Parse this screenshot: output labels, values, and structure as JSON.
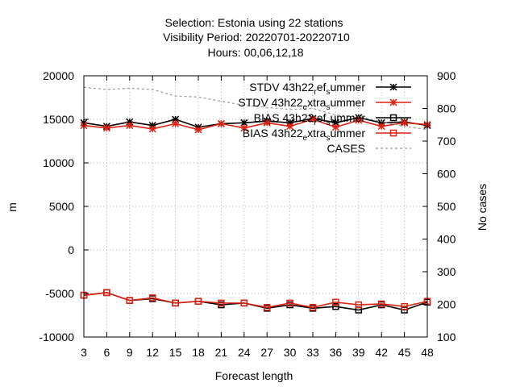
{
  "title_lines": [
    "Selection: Estonia using     22 stations",
    "Visibility   Period: 20220701-20220710",
    "Hours:  00,06,12,18"
  ],
  "chart_data": {
    "type": "line",
    "xlabel": "Forecast length",
    "ylabel": "m",
    "y2label": "No cases",
    "x": [
      3,
      6,
      9,
      12,
      15,
      18,
      21,
      24,
      27,
      30,
      33,
      36,
      39,
      42,
      45,
      48
    ],
    "xlim": [
      3,
      48
    ],
    "ylim": [
      -10000,
      20000
    ],
    "y2lim": [
      100,
      900
    ],
    "yticks": [
      "-10000",
      "-5000",
      "0",
      "5000",
      "10000",
      "15000",
      "20000"
    ],
    "y2ticks": [
      "100",
      "200",
      "300",
      "400",
      "500",
      "600",
      "700",
      "800",
      "900"
    ],
    "grid": true,
    "legend_position": "top-right",
    "series": [
      {
        "name": "STDV 43h22_ref_summer",
        "legend_parts": [
          "STDV 43h22",
          "r",
          "ef",
          "s",
          "ummer"
        ],
        "axis": "y",
        "color": "#000000",
        "marker": "star",
        "values": [
          14600,
          14200,
          14700,
          14300,
          15000,
          14100,
          14500,
          14600,
          14800,
          14600,
          15100,
          14600,
          15200,
          14600,
          14700,
          14300
        ]
      },
      {
        "name": "STDV 43h22_extra_summer",
        "legend_parts": [
          "STDV 43h22",
          "e",
          "xtra",
          "s",
          "ummer"
        ],
        "axis": "y",
        "color": "#dd2211",
        "marker": "star",
        "values": [
          14300,
          14000,
          14300,
          13900,
          14500,
          13800,
          14500,
          14000,
          14600,
          14200,
          15000,
          14100,
          14900,
          14200,
          14600,
          14400
        ]
      },
      {
        "name": "BIAS 43h22_ref_summer",
        "legend_parts": [
          "BIAS 43h22",
          "r",
          "ef",
          "s",
          "ummer"
        ],
        "axis": "y",
        "color": "#000000",
        "marker": "square",
        "values": [
          -5200,
          -4900,
          -5800,
          -5600,
          -6100,
          -5900,
          -6300,
          -6100,
          -6700,
          -6300,
          -6700,
          -6500,
          -6900,
          -6300,
          -6900,
          -6000
        ]
      },
      {
        "name": "BIAS 43h22_extra_summer",
        "legend_parts": [
          "BIAS 43h22",
          "e",
          "xtra",
          "s",
          "ummer"
        ],
        "axis": "y",
        "color": "#dd2211",
        "marker": "square",
        "values": [
          -5200,
          -4900,
          -5800,
          -5500,
          -6100,
          -5900,
          -6100,
          -6100,
          -6600,
          -6100,
          -6600,
          -6000,
          -6300,
          -6200,
          -6500,
          -5900
        ]
      },
      {
        "name": "CASES",
        "legend_parts": [
          "CASES",
          "",
          "",
          "",
          ""
        ],
        "axis": "y2",
        "color": "#999999",
        "marker": "none",
        "dashed": true,
        "values": [
          865,
          858,
          862,
          858,
          838,
          835,
          822,
          810,
          803,
          797,
          800,
          780,
          775,
          760,
          745,
          735
        ]
      }
    ]
  }
}
